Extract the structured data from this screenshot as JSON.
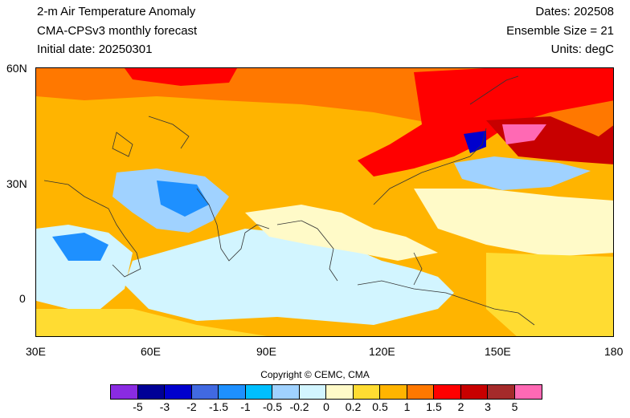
{
  "header": {
    "title": "2-m Air Temperature Anomaly",
    "model": "CMA-CPSv3 monthly forecast",
    "initial_date": "Initial date: 20250301",
    "dates": "Dates: 202508",
    "ensemble": "Ensemble Size = 21",
    "units": "Units: degC"
  },
  "map": {
    "lon_labels": [
      "30E",
      "60E",
      "90E",
      "120E",
      "150E",
      "180"
    ],
    "lat_labels": [
      "60N",
      "30N",
      "0"
    ]
  },
  "copyright": "Copyright © CEMC, CMA",
  "colorbar": {
    "colors": [
      "#8a2be2",
      "#000096",
      "#0000cd",
      "#4169e1",
      "#1e90ff",
      "#00bfff",
      "#a0d2ff",
      "#d2f5ff",
      "#fffac8",
      "#ffdc32",
      "#ffb400",
      "#ff7800",
      "#ff0000",
      "#c80000",
      "#a52a2a",
      "#ff69b4"
    ],
    "labels": [
      "-5",
      "-3",
      "-2",
      "-1.5",
      "-1",
      "-0.5",
      "-0.2",
      "0",
      "0.2",
      "0.5",
      "1",
      "1.5",
      "2",
      "3",
      "5"
    ]
  }
}
